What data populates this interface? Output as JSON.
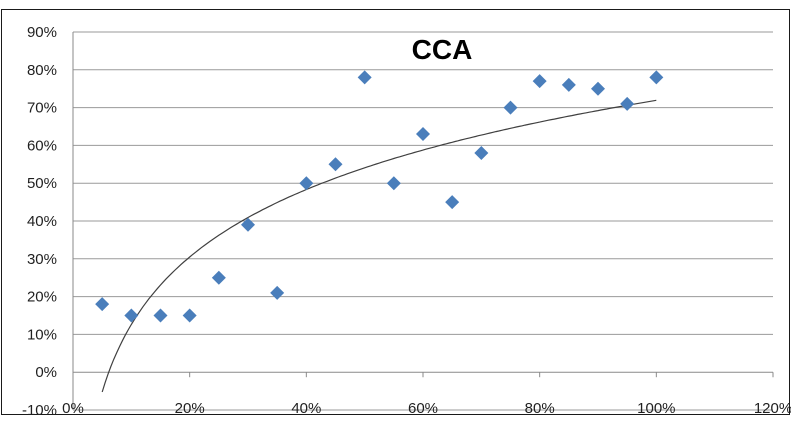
{
  "chart_data": {
    "type": "scatter",
    "title": "CCA",
    "xlabel": "",
    "ylabel": "",
    "xlim": [
      0,
      120
    ],
    "ylim": [
      -10,
      90
    ],
    "x_ticks": [
      "0%",
      "20%",
      "40%",
      "60%",
      "80%",
      "100%",
      "120%"
    ],
    "y_ticks": [
      "-10%",
      "0%",
      "10%",
      "20%",
      "30%",
      "40%",
      "50%",
      "60%",
      "70%",
      "80%",
      "90%"
    ],
    "grid": "horizontal",
    "legend": "none",
    "series": [
      {
        "marker": "diamond",
        "color": "#4a7ebb",
        "points": [
          {
            "x": 5,
            "y": 18
          },
          {
            "x": 10,
            "y": 15
          },
          {
            "x": 15,
            "y": 15
          },
          {
            "x": 20,
            "y": 15
          },
          {
            "x": 25,
            "y": 25
          },
          {
            "x": 30,
            "y": 39
          },
          {
            "x": 35,
            "y": 21
          },
          {
            "x": 40,
            "y": 50
          },
          {
            "x": 45,
            "y": 55
          },
          {
            "x": 50,
            "y": 78
          },
          {
            "x": 55,
            "y": 50
          },
          {
            "x": 60,
            "y": 63
          },
          {
            "x": 65,
            "y": 45
          },
          {
            "x": 70,
            "y": 58
          },
          {
            "x": 75,
            "y": 70
          },
          {
            "x": 80,
            "y": 77
          },
          {
            "x": 85,
            "y": 76
          },
          {
            "x": 90,
            "y": 75
          },
          {
            "x": 95,
            "y": 71
          },
          {
            "x": 100,
            "y": 78
          }
        ]
      }
    ],
    "trendline": {
      "type": "logarithmic",
      "color": "#404040",
      "x_from": 5,
      "x_to": 100,
      "points": [
        {
          "x": 5,
          "y": -5
        },
        {
          "x": 10,
          "y": 12
        },
        {
          "x": 20,
          "y": 31
        },
        {
          "x": 30,
          "y": 41
        },
        {
          "x": 40,
          "y": 48
        },
        {
          "x": 50,
          "y": 54
        },
        {
          "x": 60,
          "y": 59
        },
        {
          "x": 70,
          "y": 63
        },
        {
          "x": 80,
          "y": 66
        },
        {
          "x": 90,
          "y": 69
        },
        {
          "x": 100,
          "y": 72
        }
      ]
    }
  }
}
